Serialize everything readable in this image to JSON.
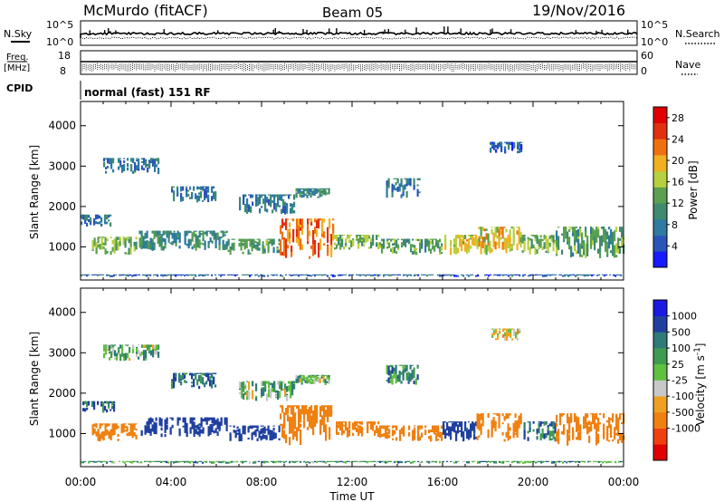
{
  "header": {
    "station": "McMurdo (fitACF)",
    "beam": "Beam 05",
    "date": "19/Nov/2016"
  },
  "strip_panels": {
    "sky_label": "N.Sky",
    "sky_scale_top": "10^5",
    "sky_scale_bottom": "10^0",
    "search_label": "N.Search",
    "search_scale_top": "10^5",
    "search_scale_bottom": "10^0",
    "freq_label": "Freq.",
    "freq_unit": "[MHz]",
    "freq_top": "18",
    "freq_bottom": "8",
    "nave_label": "Nave",
    "nave_top": "60",
    "nave_bottom": "0",
    "cpid_label": "CPID",
    "cpid_text": "normal (fast) 151 RF"
  },
  "colors": {
    "power_scale": [
      "#1a1aff",
      "#2a55b8",
      "#2e7aa0",
      "#3f8a70",
      "#5aa050",
      "#b8d040",
      "#f0b020",
      "#f07010",
      "#e03010",
      "#e00000"
    ],
    "velocity_scale": [
      "#e00000",
      "#f04010",
      "#f08010",
      "#f0a020",
      "#c8c8c8",
      "#60c040",
      "#409a50",
      "#307a78",
      "#2040a0",
      "#1a1ae0"
    ]
  },
  "chart_data": [
    {
      "type": "heatmap",
      "title": "",
      "ylabel": "Slant Range [km]",
      "xlabel": "",
      "x_ticks": [
        "00:00",
        "04:00",
        "08:00",
        "12:00",
        "16:00",
        "20:00",
        "00:00"
      ],
      "y_ticks": [
        "1000",
        "2000",
        "3000",
        "4000"
      ],
      "ylim": [
        180,
        4600
      ],
      "xlim_hours": [
        0,
        24
      ],
      "colorbar": {
        "label": "Power [dB]",
        "ticks": [
          "4",
          "8",
          "12",
          "16",
          "20",
          "24",
          "28"
        ],
        "range": [
          0,
          30
        ]
      },
      "echo_regions": [
        {
          "x": [
            0.0,
            24.0
          ],
          "y": [
            250,
            320
          ],
          "value": 6
        },
        {
          "x": [
            0.5,
            2.5
          ],
          "y": [
            800,
            1250
          ],
          "value": 14
        },
        {
          "x": [
            2.5,
            6.5
          ],
          "y": [
            900,
            1400
          ],
          "value": 10
        },
        {
          "x": [
            6.5,
            8.8
          ],
          "y": [
            800,
            1200
          ],
          "value": 12
        },
        {
          "x": [
            8.8,
            11.2
          ],
          "y": [
            700,
            1700
          ],
          "value": 22
        },
        {
          "x": [
            11.2,
            13.2
          ],
          "y": [
            900,
            1300
          ],
          "value": 14
        },
        {
          "x": [
            13.2,
            16.0
          ],
          "y": [
            800,
            1200
          ],
          "value": 12
        },
        {
          "x": [
            16.0,
            17.5
          ],
          "y": [
            800,
            1300
          ],
          "value": 18
        },
        {
          "x": [
            17.5,
            19.5
          ],
          "y": [
            800,
            1500
          ],
          "value": 18
        },
        {
          "x": [
            19.5,
            21.0
          ],
          "y": [
            800,
            1300
          ],
          "value": 14
        },
        {
          "x": [
            21.0,
            24.0
          ],
          "y": [
            700,
            1500
          ],
          "value": 12
        },
        {
          "x": [
            0.0,
            1.5
          ],
          "y": [
            1500,
            1800
          ],
          "value": 8
        },
        {
          "x": [
            1.0,
            3.5
          ],
          "y": [
            2800,
            3200
          ],
          "value": 8
        },
        {
          "x": [
            4.0,
            6.0
          ],
          "y": [
            2100,
            2500
          ],
          "value": 8
        },
        {
          "x": [
            7.0,
            9.5
          ],
          "y": [
            1800,
            2300
          ],
          "value": 8
        },
        {
          "x": [
            9.5,
            11.0
          ],
          "y": [
            2200,
            2450
          ],
          "value": 10
        },
        {
          "x": [
            13.5,
            15.0
          ],
          "y": [
            2200,
            2700
          ],
          "value": 8
        },
        {
          "x": [
            18.0,
            19.5
          ],
          "y": [
            3300,
            3600
          ],
          "value": 6
        }
      ]
    },
    {
      "type": "heatmap",
      "title": "",
      "ylabel": "Slant Range [km]",
      "xlabel": "Time UT",
      "x_ticks": [
        "00:00",
        "04:00",
        "08:00",
        "12:00",
        "16:00",
        "20:00",
        "00:00"
      ],
      "y_ticks": [
        "1000",
        "2000",
        "3000",
        "4000"
      ],
      "ylim": [
        180,
        4600
      ],
      "xlim_hours": [
        0,
        24
      ],
      "colorbar": {
        "label": "Velocity [m s^-1]",
        "ticks": [
          "1000",
          "500",
          "100",
          "25",
          "-25",
          "-100",
          "-500",
          "-1000"
        ],
        "range": [
          -1200,
          1200
        ]
      },
      "echo_regions": [
        {
          "x": [
            0.0,
            24.0
          ],
          "y": [
            250,
            320
          ],
          "value": 40
        },
        {
          "x": [
            0.5,
            2.5
          ],
          "y": [
            800,
            1250
          ],
          "value": -400
        },
        {
          "x": [
            2.5,
            6.5
          ],
          "y": [
            900,
            1400
          ],
          "value": 300
        },
        {
          "x": [
            6.5,
            8.8
          ],
          "y": [
            800,
            1200
          ],
          "value": 300
        },
        {
          "x": [
            8.8,
            11.2
          ],
          "y": [
            700,
            1700
          ],
          "value": -200
        },
        {
          "x": [
            11.2,
            13.2
          ],
          "y": [
            900,
            1300
          ],
          "value": -300
        },
        {
          "x": [
            13.2,
            16.0
          ],
          "y": [
            800,
            1200
          ],
          "value": -300
        },
        {
          "x": [
            16.0,
            17.5
          ],
          "y": [
            800,
            1300
          ],
          "value": 150
        },
        {
          "x": [
            17.5,
            19.5
          ],
          "y": [
            800,
            1500
          ],
          "value": -350
        },
        {
          "x": [
            19.5,
            21.0
          ],
          "y": [
            800,
            1300
          ],
          "value": 100
        },
        {
          "x": [
            21.0,
            24.0
          ],
          "y": [
            700,
            1500
          ],
          "value": -300
        },
        {
          "x": [
            0.0,
            1.5
          ],
          "y": [
            1500,
            1800
          ],
          "value": 100
        },
        {
          "x": [
            1.0,
            3.5
          ],
          "y": [
            2800,
            3200
          ],
          "value": 15
        },
        {
          "x": [
            4.0,
            6.0
          ],
          "y": [
            2100,
            2500
          ],
          "value": 100
        },
        {
          "x": [
            7.0,
            9.5
          ],
          "y": [
            1800,
            2300
          ],
          "value": 15
        },
        {
          "x": [
            9.5,
            11.0
          ],
          "y": [
            2200,
            2450
          ],
          "value": 15
        },
        {
          "x": [
            13.5,
            15.0
          ],
          "y": [
            2200,
            2700
          ],
          "value": 60
        },
        {
          "x": [
            18.0,
            19.5
          ],
          "y": [
            3300,
            3600
          ],
          "value": -60
        }
      ]
    }
  ]
}
